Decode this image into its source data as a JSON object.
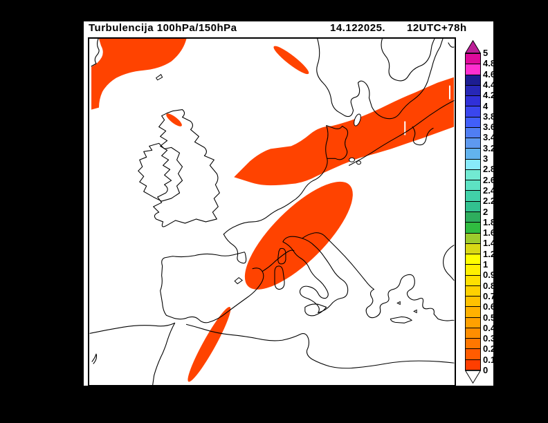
{
  "header": {
    "title": "Turbulencija 100hPa/150hPa",
    "date": "14.122025.",
    "run": "12UTC+78h"
  },
  "chart_data": {
    "type": "filled-contour-map",
    "title": "Turbulencija 100hPa/150hPa",
    "valid_label": "14.122025. 12UTC+78h",
    "parameter": "Turbulencija 100hPa/150hPa",
    "fill_color": "#ff4300",
    "background_color": "#000000",
    "canvas_color": "#ffffff",
    "frame_color": "#000000",
    "filled_regions": [
      "northwest-atlantic-iceland",
      "north-scotland-sliver",
      "southern-norway-sliver",
      "north-sea-to-baltic-band",
      "alps-north-italy-band",
      "algeria-mediterranean-sliver"
    ],
    "colorbar": {
      "range": [
        0,
        5
      ],
      "labels": [
        "5",
        "4.8",
        "4.6",
        "4.4",
        "4.2",
        "4",
        "3.8",
        "3.6",
        "3.4",
        "3.2",
        "3",
        "2.8",
        "2.6",
        "2.4",
        "2.2",
        "2",
        "1.8",
        "1.6",
        "1.4",
        "1.2",
        "1",
        "0.9",
        "0.8",
        "0.7",
        "0.6",
        "0.5",
        "0.4",
        "0.3",
        "0.2",
        "0.1",
        "0"
      ],
      "cell_colors": [
        "#df0a9b",
        "#ff2fd0",
        "#1d1d92",
        "#2727b7",
        "#3030d8",
        "#3a46ee",
        "#415ffa",
        "#507ef3",
        "#5e99ef",
        "#62b3ee",
        "#88eafb",
        "#72ead2",
        "#5de2c3",
        "#41d1a8",
        "#32c18f",
        "#2ead5d",
        "#30bc40",
        "#9ccb2d",
        "#d9d915",
        "#ffff00",
        "#fff000",
        "#ffe000",
        "#ffd100",
        "#ffc100",
        "#ffb100",
        "#ffa100",
        "#ff8e00",
        "#ff7700",
        "#ff5c00",
        "#ff3e00"
      ],
      "arrow_top_color": "#bb1f96",
      "arrow_bottom_color": "#ffffff",
      "position": "right"
    }
  }
}
